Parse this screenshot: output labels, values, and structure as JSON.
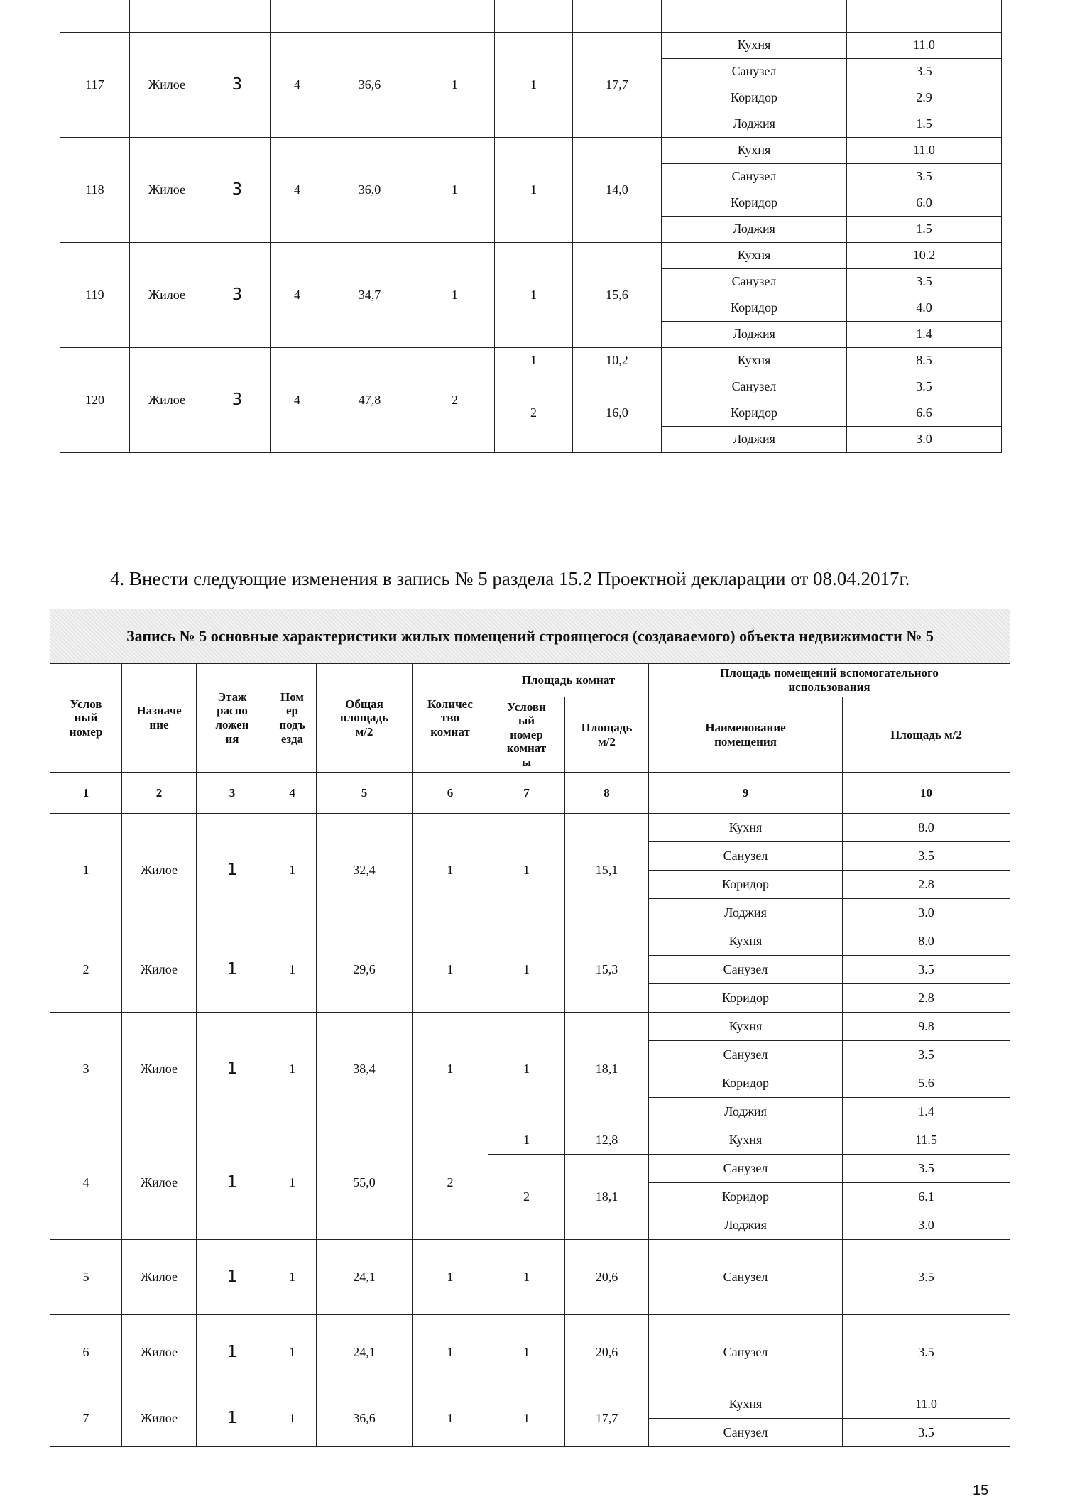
{
  "top_table": {
    "apartments": [
      {
        "number": "117",
        "purpose": "Жилое",
        "floor": "3",
        "entrance": "4",
        "total_area": "36,6",
        "room_count": "1",
        "rooms": [
          {
            "number": "1",
            "area": "17,7"
          }
        ],
        "aux": [
          {
            "name": "Кухня",
            "area": "11.0"
          },
          {
            "name": "Санузел",
            "area": "3.5"
          },
          {
            "name": "Коридор",
            "area": "2.9"
          },
          {
            "name": "Лоджия",
            "area": "1.5"
          }
        ]
      },
      {
        "number": "118",
        "purpose": "Жилое",
        "floor": "3",
        "entrance": "4",
        "total_area": "36,0",
        "room_count": "1",
        "rooms": [
          {
            "number": "1",
            "area": "14,0"
          }
        ],
        "aux": [
          {
            "name": "Кухня",
            "area": "11.0"
          },
          {
            "name": "Санузел",
            "area": "3.5"
          },
          {
            "name": "Коридор",
            "area": "6.0"
          },
          {
            "name": "Лоджия",
            "area": "1.5"
          }
        ]
      },
      {
        "number": "119",
        "purpose": "Жилое",
        "floor": "3",
        "entrance": "4",
        "total_area": "34,7",
        "room_count": "1",
        "rooms": [
          {
            "number": "1",
            "area": "15,6"
          }
        ],
        "aux": [
          {
            "name": "Кухня",
            "area": "10.2"
          },
          {
            "name": "Санузел",
            "area": "3.5"
          },
          {
            "name": "Коридор",
            "area": "4.0"
          },
          {
            "name": "Лоджия",
            "area": "1.4"
          }
        ]
      },
      {
        "number": "120",
        "purpose": "Жилое",
        "floor": "3",
        "entrance": "4",
        "total_area": "47,8",
        "room_count": "2",
        "rooms": [
          {
            "number": "1",
            "area": "10,2"
          },
          {
            "number": "2",
            "area": "16,0"
          }
        ],
        "aux": [
          {
            "name": "Кухня",
            "area": "8.5"
          },
          {
            "name": "Санузел",
            "area": "3.5"
          },
          {
            "name": "Коридор",
            "area": "6.6"
          },
          {
            "name": "Лоджия",
            "area": "3.0"
          }
        ]
      }
    ]
  },
  "instruction": "4. Внести следующие изменения в запись № 5 раздела 15.2 Проектной декларации от 08.04.2017г.",
  "record_table": {
    "title": "Запись № 5 основные характеристики жилых помещений строящегося (создаваемого) объекта недвижимости № 5",
    "headers": [
      "Услов\nный\nномер",
      "Назначе\nние",
      "Этаж\nраспо\nложен\nия",
      "Ном\nер\nподъ\nезда",
      "Общая\nплощадь\nм/2",
      "Количес\nтво\nкомнат",
      "Условн\nый\nномер\nкомнат\nы",
      "Площадь\nм/2",
      "Наименование\nпомещения",
      "Площадь м/2"
    ],
    "group_headers": [
      "Площадь комнат",
      "Площадь помещений вспомогательного\nиспользования"
    ],
    "column_numbers": [
      "1",
      "2",
      "3",
      "4",
      "5",
      "6",
      "7",
      "8",
      "9",
      "10"
    ],
    "apartments": [
      {
        "number": "1",
        "purpose": "Жилое",
        "floor": "1",
        "entrance": "1",
        "total_area": "32,4",
        "room_count": "1",
        "rooms": [
          {
            "number": "1",
            "area": "15,1"
          }
        ],
        "aux": [
          {
            "name": "Кухня",
            "area": "8.0"
          },
          {
            "name": "Санузел",
            "area": "3.5"
          },
          {
            "name": "Коридор",
            "area": "2.8"
          },
          {
            "name": "Лоджия",
            "area": "3.0"
          }
        ]
      },
      {
        "number": "2",
        "purpose": "Жилое",
        "floor": "1",
        "entrance": "1",
        "total_area": "29,6",
        "room_count": "1",
        "rooms": [
          {
            "number": "1",
            "area": "15,3"
          }
        ],
        "aux": [
          {
            "name": "Кухня",
            "area": "8.0"
          },
          {
            "name": "Санузел",
            "area": "3.5"
          },
          {
            "name": "Коридор",
            "area": "2.8"
          }
        ]
      },
      {
        "number": "3",
        "purpose": "Жилое",
        "floor": "1",
        "entrance": "1",
        "total_area": "38,4",
        "room_count": "1",
        "rooms": [
          {
            "number": "1",
            "area": "18,1"
          }
        ],
        "aux": [
          {
            "name": "Кухня",
            "area": "9.8"
          },
          {
            "name": "Санузел",
            "area": "3.5"
          },
          {
            "name": "Коридор",
            "area": "5.6"
          },
          {
            "name": "Лоджия",
            "area": "1.4"
          }
        ]
      },
      {
        "number": "4",
        "purpose": "Жилое",
        "floor": "1",
        "entrance": "1",
        "total_area": "55,0",
        "room_count": "2",
        "rooms": [
          {
            "number": "1",
            "area": "12,8"
          },
          {
            "number": "2",
            "area": "18,1"
          }
        ],
        "aux": [
          {
            "name": "Кухня",
            "area": "11.5"
          },
          {
            "name": "Санузел",
            "area": "3.5"
          },
          {
            "name": "Коридор",
            "area": "6.1"
          },
          {
            "name": "Лоджия",
            "area": "3.0"
          }
        ]
      },
      {
        "number": "5",
        "purpose": "Жилое",
        "floor": "1",
        "entrance": "1",
        "total_area": "24,1",
        "room_count": "1",
        "rooms": [
          {
            "number": "1",
            "area": "20,6"
          }
        ],
        "aux": [
          {
            "name": "Санузел",
            "area": "3.5"
          }
        ]
      },
      {
        "number": "6",
        "purpose": "Жилое",
        "floor": "1",
        "entrance": "1",
        "total_area": "24,1",
        "room_count": "1",
        "rooms": [
          {
            "number": "1",
            "area": "20,6"
          }
        ],
        "aux": [
          {
            "name": "Санузел",
            "area": "3.5"
          }
        ]
      },
      {
        "number": "7",
        "purpose": "Жилое",
        "floor": "1",
        "entrance": "1",
        "total_area": "36,6",
        "room_count": "1",
        "rooms": [
          {
            "number": "1",
            "area": "17,7"
          }
        ],
        "aux": [
          {
            "name": "Кухня",
            "area": "11.0"
          },
          {
            "name": "Санузел",
            "area": "3.5"
          }
        ]
      }
    ]
  },
  "page_number": "15"
}
